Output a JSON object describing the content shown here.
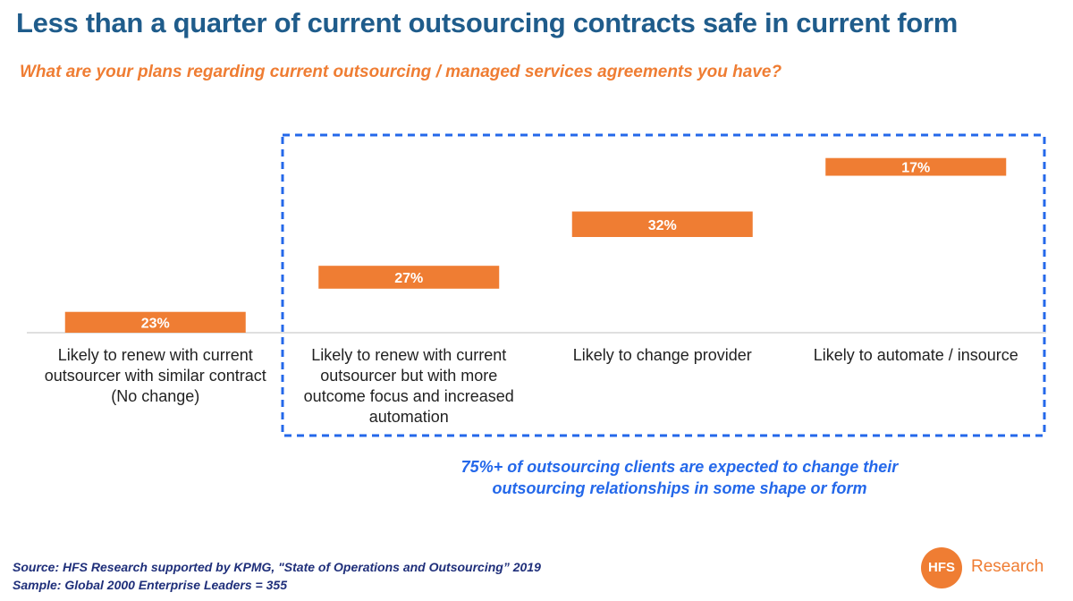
{
  "title": "Less than a quarter of current outsourcing contracts safe in current form",
  "subtitle": "What are your plans regarding current outsourcing / managed services agreements you have?",
  "callout": [
    "75%+ of outsourcing clients are expected to change their",
    "outsourcing relationships in some shape or form"
  ],
  "source_lines": [
    "Source: HFS Research supported by KPMG, \"State of Operations and Outsourcing” 2019",
    "Sample: Global 2000 Enterprise Leaders = 355"
  ],
  "logo": {
    "mark": "HFS",
    "text": "Research"
  },
  "colors": {
    "bar": "#EF7D33",
    "title": "#1F5C8B",
    "subtitle": "#EF7D33",
    "callout": "#2468EA",
    "box": "#2468EA",
    "source": "#1F2F7A"
  },
  "chart_data": {
    "type": "bar",
    "variant": "waterfall",
    "categories": [
      [
        "Likely to renew with current",
        "outsourcer with similar contract",
        "(No change)"
      ],
      [
        "Likely to renew with current",
        "outsourcer but with more",
        "outcome focus and increased",
        "automation"
      ],
      [
        "Likely to change provider"
      ],
      [
        "Likely to automate / insource"
      ]
    ],
    "values": [
      23,
      27,
      32,
      17
    ],
    "labels": [
      "23%",
      "27%",
      "32%",
      "17%"
    ],
    "ylim": [
      0,
      100
    ],
    "grid": false,
    "highlight_box": {
      "categories": [
        1,
        2,
        3
      ],
      "style": "dashed"
    }
  }
}
